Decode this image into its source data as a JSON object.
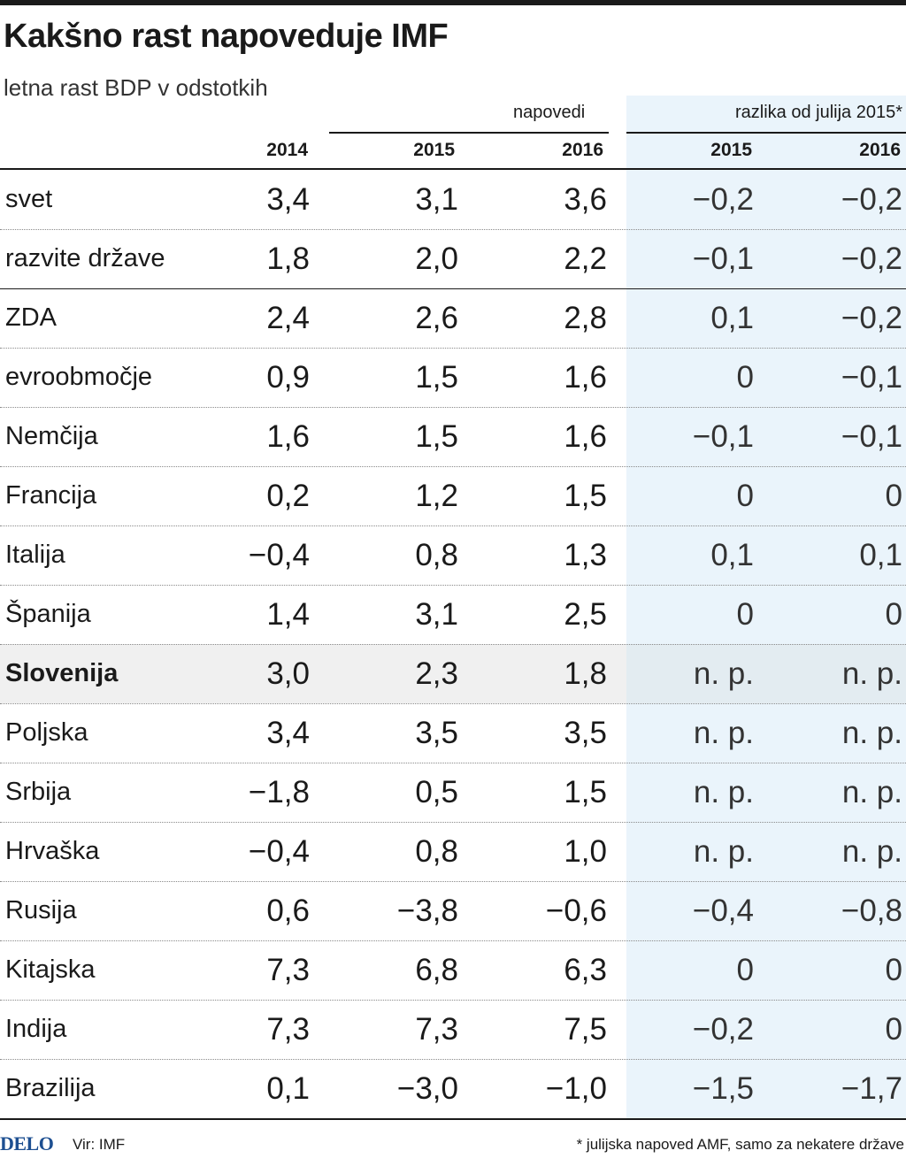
{
  "title": "Kakšno rast napoveduje IMF",
  "subtitle": "letna rast BDP v odstotkih",
  "header": {
    "group_forecast": "napovedi",
    "group_diff": "razlika od julija 2015*",
    "columns": [
      "2014",
      "2015",
      "2016",
      "2015",
      "2016"
    ]
  },
  "chart_data": {
    "type": "table",
    "columns": [
      "2014",
      "2015",
      "2016",
      "2015",
      "2016"
    ],
    "rows": [
      {
        "name": "svet",
        "values": [
          "3,4",
          "3,1",
          "3,6",
          "−0,2",
          "−0,2"
        ]
      },
      {
        "name": "razvite države",
        "values": [
          "1,8",
          "2,0",
          "2,2",
          "−0,1",
          "−0,2"
        ]
      },
      {
        "name": "ZDA",
        "values": [
          "2,4",
          "2,6",
          "2,8",
          "0,1",
          "−0,2"
        ]
      },
      {
        "name": "evroobmočje",
        "values": [
          "0,9",
          "1,5",
          "1,6",
          "0",
          "−0,1"
        ]
      },
      {
        "name": "Nemčija",
        "values": [
          "1,6",
          "1,5",
          "1,6",
          "−0,1",
          "−0,1"
        ]
      },
      {
        "name": "Francija",
        "values": [
          "0,2",
          "1,2",
          "1,5",
          "0",
          "0"
        ]
      },
      {
        "name": "Italija",
        "values": [
          "−0,4",
          "0,8",
          "1,3",
          "0,1",
          "0,1"
        ]
      },
      {
        "name": "Španija",
        "values": [
          "1,4",
          "3,1",
          "2,5",
          "0",
          "0"
        ]
      },
      {
        "name": "Slovenija",
        "values": [
          "3,0",
          "2,3",
          "1,8",
          "n. p.",
          "n. p."
        ],
        "highlight": true
      },
      {
        "name": "Poljska",
        "values": [
          "3,4",
          "3,5",
          "3,5",
          "n. p.",
          "n. p."
        ]
      },
      {
        "name": "Srbija",
        "values": [
          "−1,8",
          "0,5",
          "1,5",
          "n. p.",
          "n. p."
        ]
      },
      {
        "name": "Hrvaška",
        "values": [
          "−0,4",
          "0,8",
          "1,0",
          "n. p.",
          "n. p."
        ]
      },
      {
        "name": "Rusija",
        "values": [
          "0,6",
          "−3,8",
          "−0,6",
          "−0,4",
          "−0,8"
        ]
      },
      {
        "name": "Kitajska",
        "values": [
          "7,3",
          "6,8",
          "6,3",
          "0",
          "0"
        ]
      },
      {
        "name": "Indija",
        "values": [
          "7,3",
          "7,3",
          "7,5",
          "−0,2",
          "0"
        ]
      },
      {
        "name": "Brazilija",
        "values": [
          "0,1",
          "−3,0",
          "−1,0",
          "−1,5",
          "−1,7"
        ]
      }
    ]
  },
  "footer": {
    "logo": "DELO",
    "source": "Vir: IMF",
    "footnote": "* julijska napoved AMF, samo za nekatere države"
  },
  "colors": {
    "diff_shade": "#eaf4fb",
    "highlight_row": "#f0f0f0",
    "logo": "#1d4f91"
  }
}
